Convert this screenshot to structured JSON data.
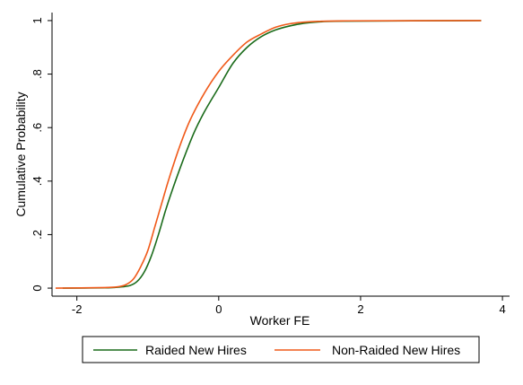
{
  "chart_data": {
    "type": "line",
    "xlabel": "Worker FE",
    "ylabel": "Cumulative Probability",
    "xlim": [
      -2.35,
      4.1
    ],
    "ylim": [
      -0.03,
      1.03
    ],
    "xticks": [
      {
        "value": -2,
        "label": "-2"
      },
      {
        "value": 0,
        "label": "0"
      },
      {
        "value": 2,
        "label": "2"
      },
      {
        "value": 4,
        "label": "4"
      }
    ],
    "yticks": [
      {
        "value": 0,
        "label": "0"
      },
      {
        "value": 0.2,
        "label": ".2"
      },
      {
        "value": 0.4,
        "label": ".4"
      },
      {
        "value": 0.6,
        "label": ".6"
      },
      {
        "value": 0.8,
        "label": ".8"
      },
      {
        "value": 1,
        "label": "1"
      }
    ],
    "grid": false,
    "legend_position": "bottom",
    "series": [
      {
        "name": "Raided New Hires",
        "color": "#1a6b1a",
        "x": [
          -2.2,
          -1.6,
          -1.4,
          -1.25,
          -1.15,
          -1.05,
          -0.95,
          -0.85,
          -0.75,
          -0.65,
          -0.5,
          -0.35,
          -0.2,
          0.0,
          0.2,
          0.4,
          0.6,
          0.8,
          1.0,
          1.2,
          1.4,
          1.8,
          3.7
        ],
        "y": [
          0.0,
          0.001,
          0.004,
          0.01,
          0.025,
          0.06,
          0.12,
          0.2,
          0.29,
          0.37,
          0.48,
          0.58,
          0.66,
          0.75,
          0.84,
          0.9,
          0.94,
          0.965,
          0.98,
          0.99,
          0.995,
          0.998,
          1.0
        ]
      },
      {
        "name": "Non-Raided New Hires",
        "color": "#f05a1a",
        "x": [
          -2.3,
          -1.6,
          -1.4,
          -1.3,
          -1.2,
          -1.1,
          -1.0,
          -0.9,
          -0.8,
          -0.7,
          -0.55,
          -0.4,
          -0.2,
          0.0,
          0.2,
          0.4,
          0.6,
          0.8,
          1.0,
          1.2,
          1.4,
          1.8,
          3.7
        ],
        "y": [
          0.0,
          0.002,
          0.006,
          0.014,
          0.035,
          0.08,
          0.14,
          0.23,
          0.32,
          0.41,
          0.53,
          0.63,
          0.73,
          0.81,
          0.87,
          0.92,
          0.95,
          0.975,
          0.988,
          0.994,
          0.997,
          0.999,
          1.0
        ]
      }
    ]
  }
}
